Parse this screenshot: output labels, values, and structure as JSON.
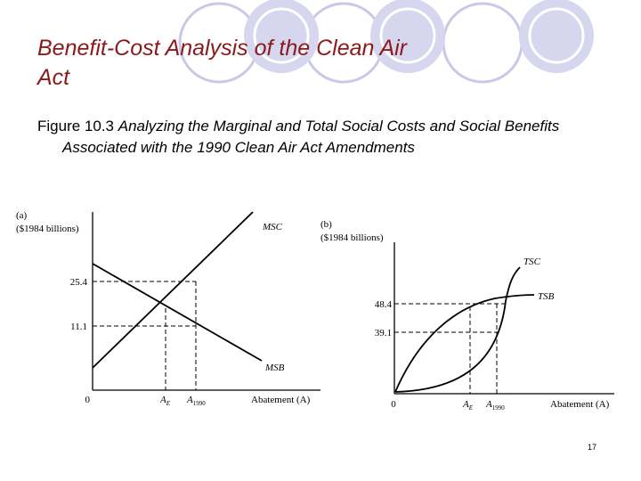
{
  "slide": {
    "title_line1": "Benefit-Cost Analysis of the Clean Air",
    "title_line2": "Act",
    "figure_number": "Figure 10.3",
    "figure_caption": "Analyzing the Marginal and Total Social Costs and Social Benefits Associated with the 1990 Clean Air Act Amendments",
    "page_number": "17"
  },
  "panel_a": {
    "label": "(a)",
    "unit": "($1984 billions)",
    "curve_msc": "MSC",
    "curve_msb": "MSB",
    "tick_high": "25.4",
    "tick_low": "11.1",
    "origin": "0",
    "ae_main": "A",
    "ae_sub": "E",
    "a1990_main": "A",
    "a1990_sub": "1990",
    "xaxis": "Abatement (A)"
  },
  "panel_b": {
    "label": "(b)",
    "unit": "($1984 billions)",
    "curve_tsc": "TSC",
    "curve_tsb": "TSB",
    "tick_high": "48.4",
    "tick_low": "39.1",
    "origin": "0",
    "ae_main": "A",
    "ae_sub": "E",
    "a1990_main": "A",
    "a1990_sub": "1990",
    "xaxis": "Abatement (A)"
  }
}
